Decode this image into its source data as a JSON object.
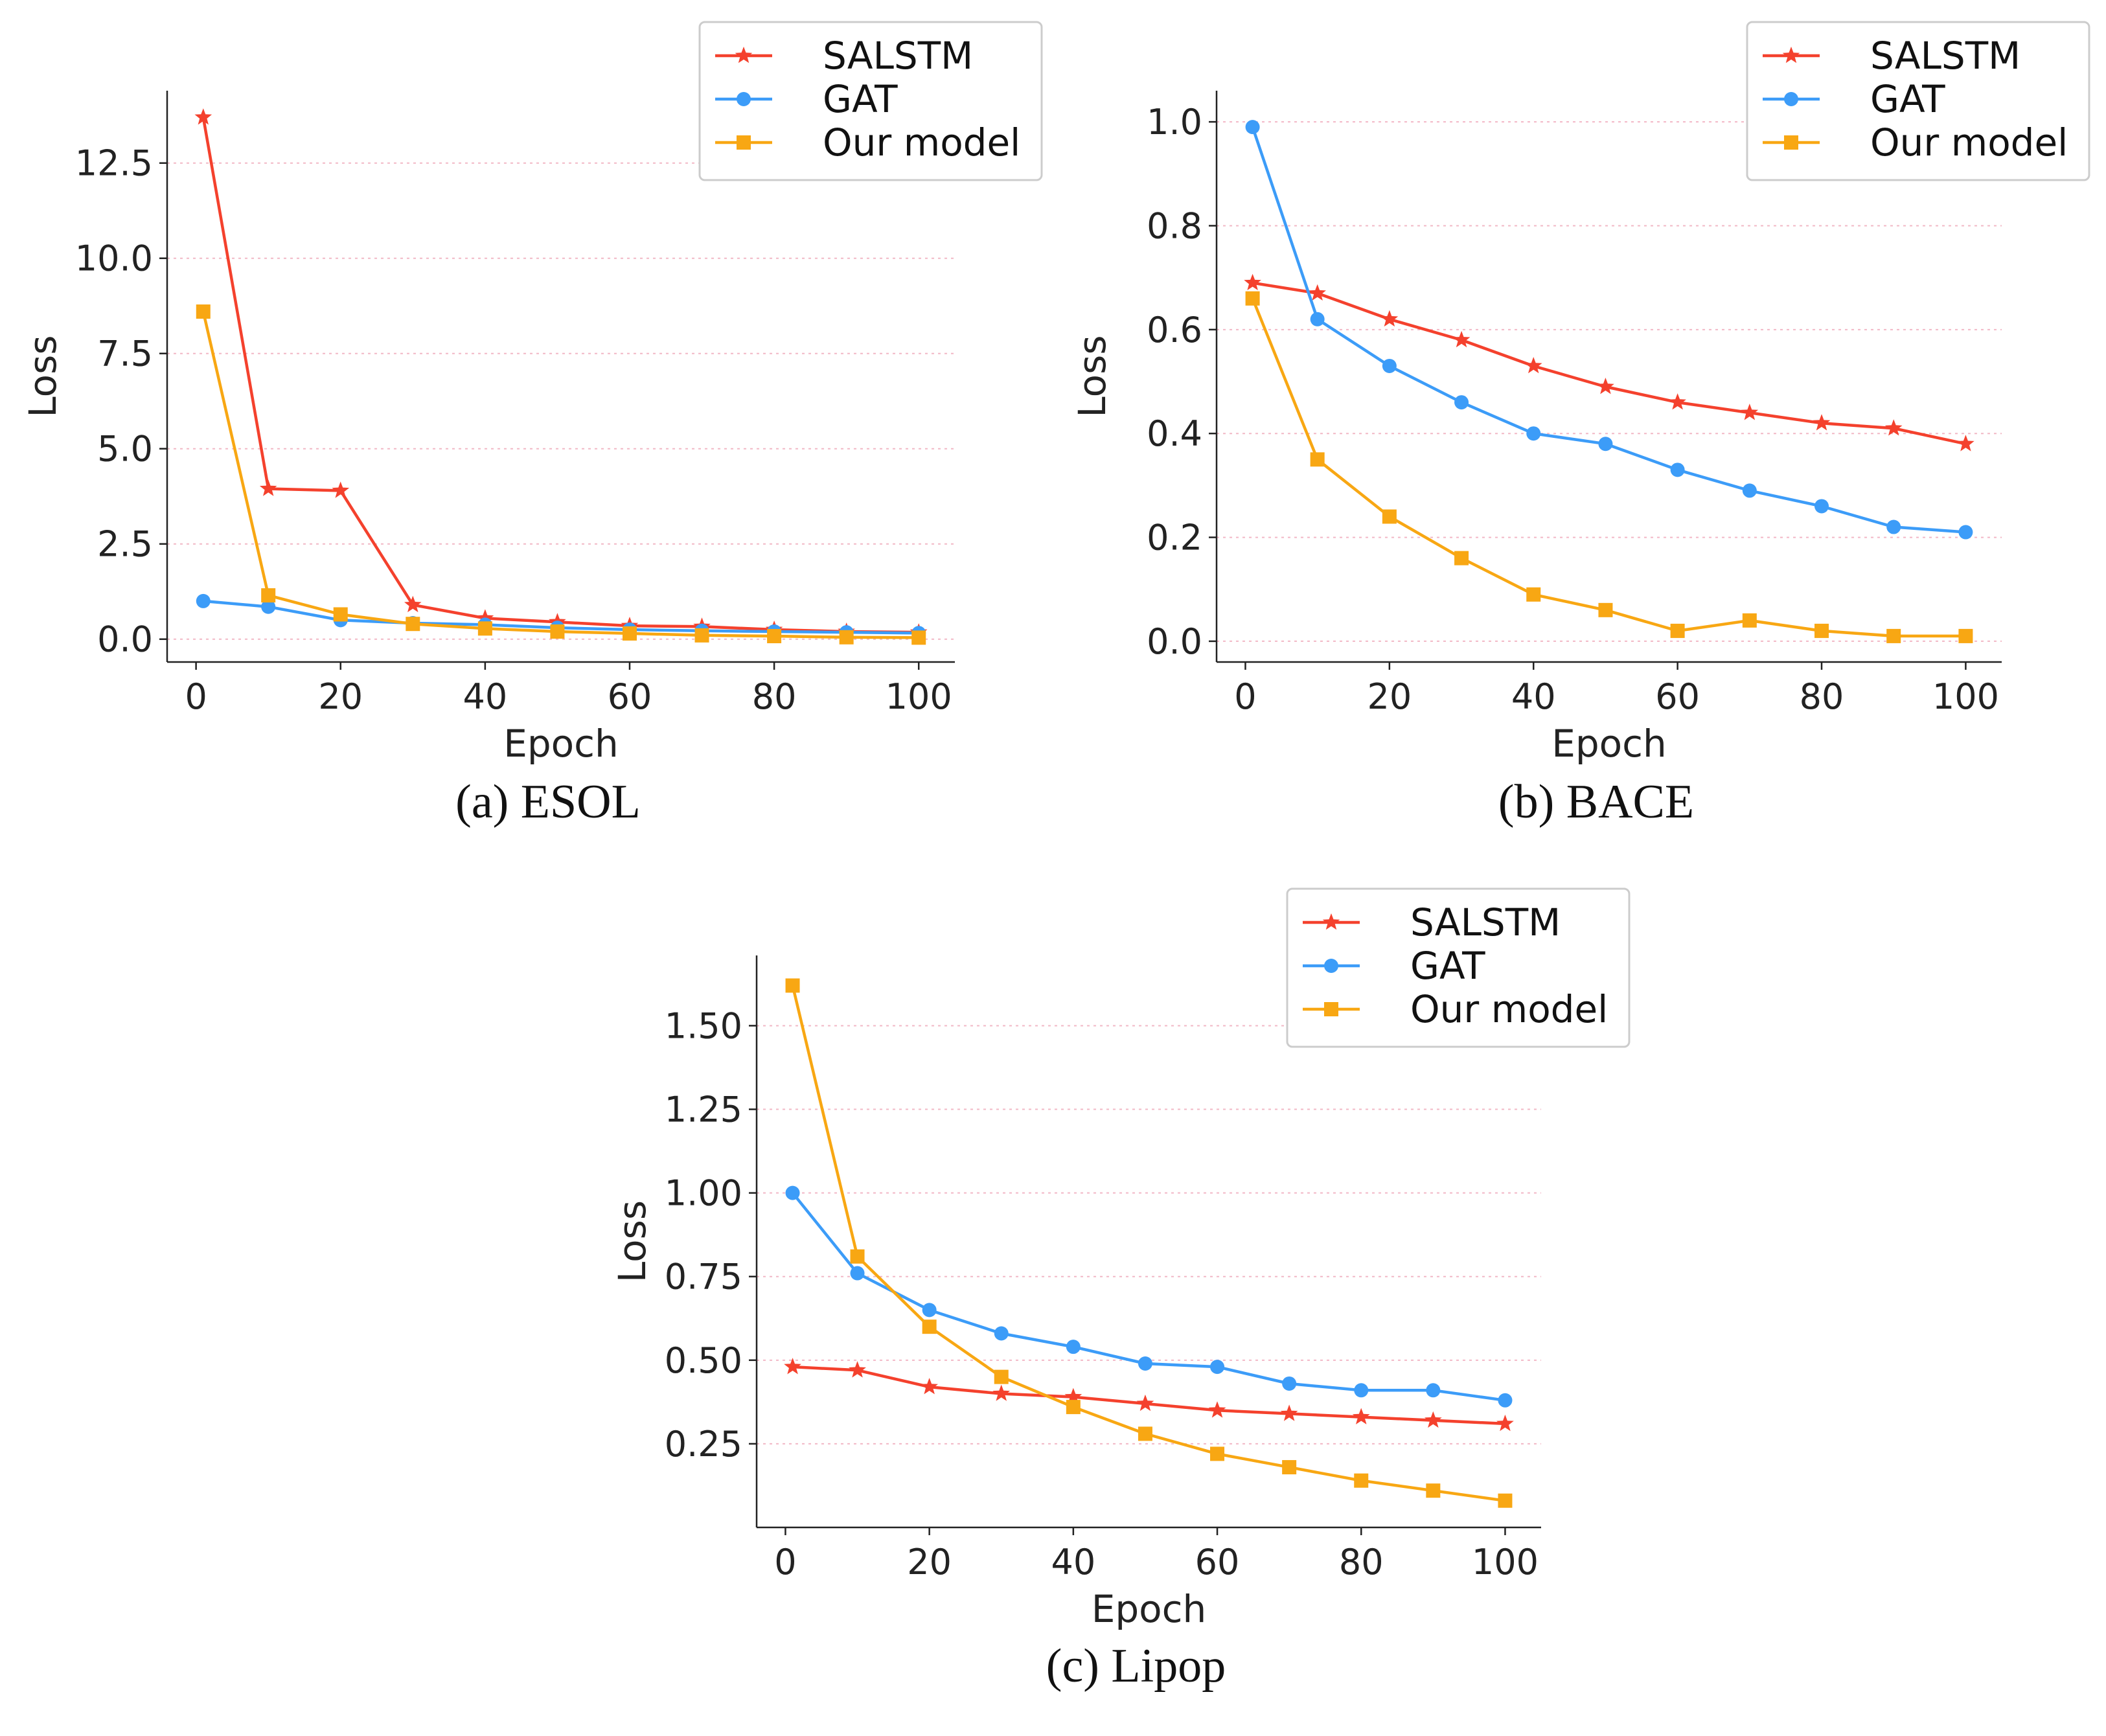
{
  "chart_data": [
    {
      "type": "line",
      "id": "esol",
      "caption": "(a) ESOL",
      "xlabel": "Epoch",
      "ylabel": "Loss",
      "xlim": [
        -4,
        105
      ],
      "ylim": [
        -0.6,
        14.4
      ],
      "xticks": [
        0,
        20,
        40,
        60,
        80,
        100
      ],
      "xtick_labels": [
        "0",
        "20",
        "40",
        "60",
        "80",
        "100"
      ],
      "yticks": [
        0,
        2.5,
        5,
        7.5,
        10,
        12.5
      ],
      "ytick_labels": [
        "0.0",
        "2.5",
        "5.0",
        "7.5",
        "10.0",
        "12.5"
      ],
      "grid": "horizontal dotted",
      "legend_position": "top-right",
      "x": [
        1,
        10,
        20,
        30,
        40,
        50,
        60,
        70,
        80,
        90,
        100
      ],
      "series": [
        {
          "name": "SALSTM",
          "color": "#f4412d",
          "marker": "star",
          "values": [
            13.7,
            3.95,
            3.9,
            0.9,
            0.55,
            0.45,
            0.35,
            0.33,
            0.25,
            0.2,
            0.18
          ]
        },
        {
          "name": "GAT",
          "color": "#3c9cf8",
          "marker": "circle",
          "values": [
            1.0,
            0.85,
            0.5,
            0.42,
            0.38,
            0.3,
            0.25,
            0.22,
            0.2,
            0.18,
            0.16
          ]
        },
        {
          "name": "Our model",
          "color": "#f8a713",
          "marker": "square",
          "values": [
            8.6,
            1.15,
            0.65,
            0.4,
            0.28,
            0.2,
            0.15,
            0.1,
            0.08,
            0.05,
            0.04
          ]
        }
      ]
    },
    {
      "type": "line",
      "id": "bace",
      "caption": "(b) BACE",
      "xlabel": "Epoch",
      "ylabel": "Loss",
      "xlim": [
        -4,
        105
      ],
      "ylim": [
        -0.04,
        1.06
      ],
      "xticks": [
        0,
        20,
        40,
        60,
        80,
        100
      ],
      "xtick_labels": [
        "0",
        "20",
        "40",
        "60",
        "80",
        "100"
      ],
      "yticks": [
        0,
        0.2,
        0.4,
        0.6,
        0.8,
        1.0
      ],
      "ytick_labels": [
        "0.0",
        "0.2",
        "0.4",
        "0.6",
        "0.8",
        "1.0"
      ],
      "grid": "horizontal dotted",
      "legend_position": "top-right",
      "x": [
        1,
        10,
        20,
        30,
        40,
        50,
        60,
        70,
        80,
        90,
        100
      ],
      "series": [
        {
          "name": "SALSTM",
          "color": "#f4412d",
          "marker": "star",
          "values": [
            0.69,
            0.67,
            0.62,
            0.58,
            0.53,
            0.49,
            0.46,
            0.44,
            0.42,
            0.41,
            0.38
          ]
        },
        {
          "name": "GAT",
          "color": "#3c9cf8",
          "marker": "circle",
          "values": [
            0.99,
            0.62,
            0.53,
            0.46,
            0.4,
            0.38,
            0.33,
            0.29,
            0.26,
            0.22,
            0.21
          ]
        },
        {
          "name": "Our model",
          "color": "#f8a713",
          "marker": "square",
          "values": [
            0.66,
            0.35,
            0.24,
            0.16,
            0.09,
            0.06,
            0.02,
            0.04,
            0.02,
            0.01,
            0.01
          ]
        }
      ]
    },
    {
      "type": "line",
      "id": "lipop",
      "caption": "(c) Lipop",
      "xlabel": "Epoch",
      "ylabel": "Loss",
      "xlim": [
        -4,
        105
      ],
      "ylim": [
        0.0,
        1.71
      ],
      "xticks": [
        0,
        20,
        40,
        60,
        80,
        100
      ],
      "xtick_labels": [
        "0",
        "20",
        "40",
        "60",
        "80",
        "100"
      ],
      "yticks": [
        0.25,
        0.5,
        0.75,
        1.0,
        1.25,
        1.5
      ],
      "ytick_labels": [
        "0.25",
        "0.50",
        "0.75",
        "1.00",
        "1.25",
        "1.50"
      ],
      "grid": "horizontal dotted",
      "legend_position": "top-right",
      "x": [
        1,
        10,
        20,
        30,
        40,
        50,
        60,
        70,
        80,
        90,
        100
      ],
      "series": [
        {
          "name": "SALSTM",
          "color": "#f4412d",
          "marker": "star",
          "values": [
            0.48,
            0.47,
            0.42,
            0.4,
            0.39,
            0.37,
            0.35,
            0.34,
            0.33,
            0.32,
            0.31
          ]
        },
        {
          "name": "GAT",
          "color": "#3c9cf8",
          "marker": "circle",
          "values": [
            1.0,
            0.76,
            0.65,
            0.58,
            0.54,
            0.49,
            0.48,
            0.43,
            0.41,
            0.41,
            0.38
          ]
        },
        {
          "name": "Our model",
          "color": "#f8a713",
          "marker": "square",
          "values": [
            1.62,
            0.81,
            0.6,
            0.45,
            0.36,
            0.28,
            0.22,
            0.18,
            0.14,
            0.11,
            0.08
          ]
        }
      ]
    }
  ]
}
